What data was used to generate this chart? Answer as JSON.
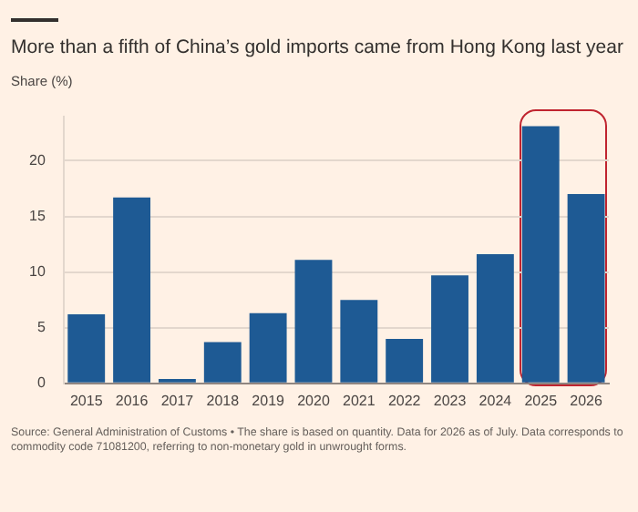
{
  "chart_data": {
    "type": "bar",
    "title": "More than a fifth of China’s gold imports came from Hong Kong last year",
    "ylabel": "Share (%)",
    "categories": [
      "2015",
      "2016",
      "2017",
      "2018",
      "2019",
      "2020",
      "2021",
      "2022",
      "2023",
      "2024",
      "2025",
      "2026"
    ],
    "values": [
      6.2,
      16.7,
      0.4,
      3.7,
      6.3,
      11.1,
      7.5,
      4.0,
      9.7,
      11.6,
      23.1,
      17.0
    ],
    "color": "#1e5a94",
    "ylim": [
      0,
      24
    ],
    "yticks": [
      0,
      5,
      10,
      15,
      20
    ],
    "grid": "y",
    "annotations": [
      "Source: General Administration of Customs • The share is based on quantity. Data for 2026 as of July. Data corresponds to commodity code 71081200, referring to non-monetary gold in unwrought forms."
    ]
  }
}
